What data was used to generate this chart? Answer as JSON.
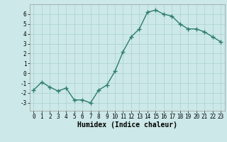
{
  "x": [
    0,
    1,
    2,
    3,
    4,
    5,
    6,
    7,
    8,
    9,
    10,
    11,
    12,
    13,
    14,
    15,
    16,
    17,
    18,
    19,
    20,
    21,
    22,
    23
  ],
  "y": [
    -1.7,
    -0.9,
    -1.4,
    -1.8,
    -1.5,
    -2.7,
    -2.7,
    -3.0,
    -1.7,
    -1.2,
    0.2,
    2.2,
    3.7,
    4.5,
    6.2,
    6.4,
    6.0,
    5.8,
    5.0,
    4.5,
    4.5,
    4.2,
    3.7,
    3.2
  ],
  "line_color": "#2e7d6e",
  "marker": "+",
  "marker_size": 4,
  "linewidth": 1.0,
  "xlabel": "Humidex (Indice chaleur)",
  "xlim": [
    -0.5,
    23.5
  ],
  "ylim": [
    -3.8,
    7.0
  ],
  "yticks": [
    -3,
    -2,
    -1,
    0,
    1,
    2,
    3,
    4,
    5,
    6
  ],
  "xticks": [
    0,
    1,
    2,
    3,
    4,
    5,
    6,
    7,
    8,
    9,
    10,
    11,
    12,
    13,
    14,
    15,
    16,
    17,
    18,
    19,
    20,
    21,
    22,
    23
  ],
  "bg_color": "#cce8e8",
  "grid_color": "#b0d4d4",
  "tick_fontsize": 5.5,
  "xlabel_fontsize": 7
}
